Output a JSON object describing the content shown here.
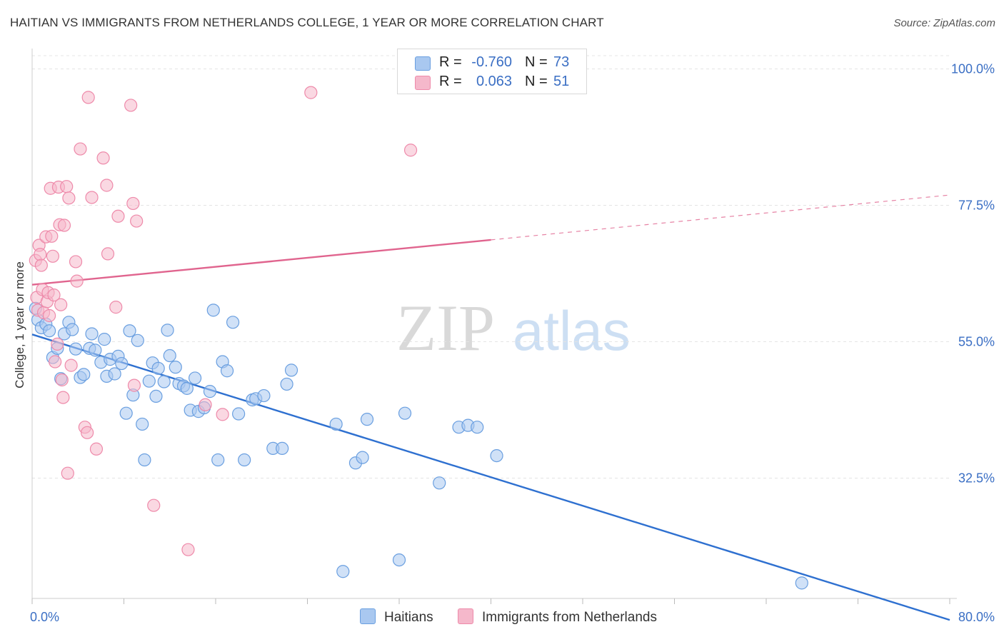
{
  "title": "HAITIAN VS IMMIGRANTS FROM NETHERLANDS COLLEGE, 1 YEAR OR MORE CORRELATION CHART",
  "source": "Source: ZipAtlas.com",
  "watermark": {
    "zip": "ZIP",
    "atlas": "atlas"
  },
  "legend_stats": [
    {
      "r_label": "R =",
      "r_value": "-0.760",
      "n_label": "N =",
      "n_value": "73",
      "color": "#a9c8f0"
    },
    {
      "r_label": "R =",
      "r_value": "0.063",
      "n_label": "N =",
      "n_value": "51",
      "color": "#f5b8cb"
    }
  ],
  "chart_data": {
    "type": "scatter",
    "ylabel": "College, 1 year or more",
    "xlim": [
      0,
      80
    ],
    "ylim": [
      10,
      102
    ],
    "x_tick_labels": [
      "0.0%",
      "80.0%"
    ],
    "y_ticks": [
      {
        "value": 100,
        "label": "100.0%"
      },
      {
        "value": 77.5,
        "label": "77.5%"
      },
      {
        "value": 55,
        "label": "55.0%"
      },
      {
        "value": 32.5,
        "label": "32.5%"
      }
    ],
    "grid": true,
    "series": [
      {
        "name": "Haitians",
        "color": "#6a9fe0",
        "fill": "#a9c8f0",
        "line_color": "#2e70d0",
        "trend": {
          "x0": 0,
          "y0": 56.2,
          "x1": 80,
          "y1": 9.1
        },
        "points": [
          [
            0.3,
            60.5
          ],
          [
            0.5,
            58.6
          ],
          [
            0.8,
            57.3
          ],
          [
            1.2,
            57.9
          ],
          [
            1.5,
            56.8
          ],
          [
            1.8,
            52.4
          ],
          [
            2.2,
            53.9
          ],
          [
            2.5,
            48.9
          ],
          [
            2.8,
            56.3
          ],
          [
            3.2,
            58.2
          ],
          [
            3.5,
            57.0
          ],
          [
            3.8,
            53.8
          ],
          [
            4.2,
            49.1
          ],
          [
            4.5,
            49.6
          ],
          [
            5.0,
            53.9
          ],
          [
            5.2,
            56.3
          ],
          [
            5.5,
            53.6
          ],
          [
            6.0,
            51.6
          ],
          [
            6.3,
            55.4
          ],
          [
            6.5,
            49.3
          ],
          [
            6.8,
            52.1
          ],
          [
            7.2,
            49.7
          ],
          [
            7.5,
            52.6
          ],
          [
            7.8,
            51.4
          ],
          [
            8.2,
            43.2
          ],
          [
            8.5,
            56.8
          ],
          [
            8.8,
            46.2
          ],
          [
            9.2,
            55.2
          ],
          [
            9.6,
            41.4
          ],
          [
            9.8,
            35.5
          ],
          [
            10.2,
            48.5
          ],
          [
            10.5,
            51.5
          ],
          [
            10.8,
            46.0
          ],
          [
            11.0,
            50.6
          ],
          [
            11.5,
            48.4
          ],
          [
            11.8,
            56.9
          ],
          [
            12.0,
            52.7
          ],
          [
            12.5,
            50.8
          ],
          [
            12.8,
            48.1
          ],
          [
            13.2,
            47.7
          ],
          [
            13.5,
            47.3
          ],
          [
            13.8,
            43.7
          ],
          [
            14.2,
            49.0
          ],
          [
            14.5,
            43.5
          ],
          [
            15.0,
            44.1
          ],
          [
            15.5,
            46.8
          ],
          [
            15.8,
            60.2
          ],
          [
            16.2,
            35.5
          ],
          [
            16.6,
            51.7
          ],
          [
            17.0,
            50.2
          ],
          [
            17.5,
            58.2
          ],
          [
            18.0,
            43.1
          ],
          [
            18.5,
            35.5
          ],
          [
            19.2,
            45.4
          ],
          [
            19.5,
            45.6
          ],
          [
            20.2,
            46.1
          ],
          [
            21.0,
            37.4
          ],
          [
            21.8,
            37.4
          ],
          [
            22.2,
            48.0
          ],
          [
            22.6,
            50.3
          ],
          [
            26.5,
            41.4
          ],
          [
            28.2,
            35.0
          ],
          [
            28.8,
            35.9
          ],
          [
            29.2,
            42.2
          ],
          [
            32.0,
            19.0
          ],
          [
            32.5,
            43.2
          ],
          [
            35.5,
            31.7
          ],
          [
            37.2,
            40.9
          ],
          [
            38.0,
            41.2
          ],
          [
            38.8,
            40.9
          ],
          [
            40.5,
            36.2
          ],
          [
            27.1,
            17.1
          ],
          [
            67.1,
            15.2
          ]
        ]
      },
      {
        "name": "Immigrants from Netherlands",
        "color": "#ee8aaa",
        "fill": "#f5b8cb",
        "line_color": "#e0648e",
        "trend": {
          "x0": 0,
          "y0": 64.4,
          "x1": 80,
          "y1": 79.2
        },
        "trend_solid_until_x": 40,
        "points": [
          [
            0.3,
            68.4
          ],
          [
            0.4,
            62.3
          ],
          [
            0.5,
            60.2
          ],
          [
            0.6,
            70.9
          ],
          [
            0.7,
            69.4
          ],
          [
            0.8,
            67.6
          ],
          [
            0.9,
            63.6
          ],
          [
            1.0,
            59.8
          ],
          [
            1.2,
            72.3
          ],
          [
            1.3,
            61.6
          ],
          [
            1.4,
            63.1
          ],
          [
            1.5,
            59.3
          ],
          [
            1.6,
            80.3
          ],
          [
            1.7,
            72.4
          ],
          [
            1.8,
            69.1
          ],
          [
            1.9,
            62.7
          ],
          [
            2.0,
            51.7
          ],
          [
            2.2,
            54.6
          ],
          [
            2.3,
            80.5
          ],
          [
            2.4,
            74.3
          ],
          [
            2.5,
            61.1
          ],
          [
            2.6,
            48.7
          ],
          [
            2.7,
            45.8
          ],
          [
            2.8,
            74.2
          ],
          [
            3.0,
            80.6
          ],
          [
            3.1,
            33.3
          ],
          [
            3.2,
            78.7
          ],
          [
            3.4,
            51.1
          ],
          [
            3.8,
            68.2
          ],
          [
            3.9,
            65.0
          ],
          [
            4.2,
            86.8
          ],
          [
            4.6,
            40.9
          ],
          [
            4.8,
            40.0
          ],
          [
            4.9,
            95.3
          ],
          [
            5.2,
            78.8
          ],
          [
            5.6,
            37.3
          ],
          [
            6.2,
            85.3
          ],
          [
            6.5,
            80.8
          ],
          [
            6.6,
            69.5
          ],
          [
            7.3,
            60.7
          ],
          [
            7.5,
            75.7
          ],
          [
            8.6,
            94.0
          ],
          [
            8.8,
            77.8
          ],
          [
            8.9,
            47.8
          ],
          [
            9.1,
            74.9
          ],
          [
            10.6,
            28.0
          ],
          [
            13.6,
            20.7
          ],
          [
            15.1,
            44.6
          ],
          [
            16.6,
            43.0
          ],
          [
            24.3,
            96.1
          ],
          [
            33.0,
            86.6
          ]
        ]
      }
    ]
  }
}
